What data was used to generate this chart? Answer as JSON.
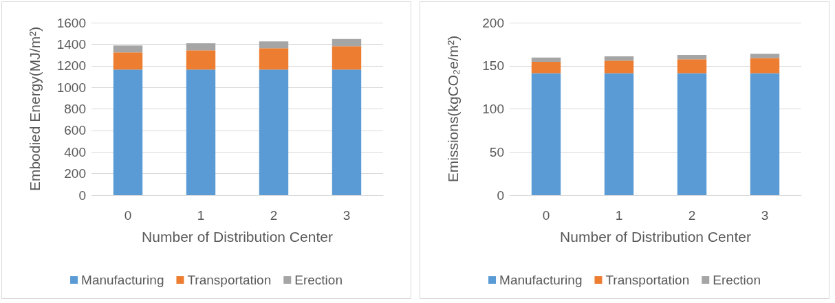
{
  "chart_data": [
    {
      "type": "bar",
      "stacked": true,
      "xlabel": "Number of Distribution Center",
      "ylabel": "Embodied Energy(MJ/m²)",
      "categories": [
        "0",
        "1",
        "2",
        "3"
      ],
      "ylim": [
        0,
        1600
      ],
      "yticks": [
        0,
        200,
        400,
        600,
        800,
        1000,
        1200,
        1400,
        1600
      ],
      "grid": "y",
      "legend": "bottom",
      "series": [
        {
          "name": "Manufacturing",
          "color": "#5b9bd5",
          "values": [
            1165,
            1165,
            1165,
            1165
          ]
        },
        {
          "name": "Transportation",
          "color": "#ed7d31",
          "values": [
            160,
            178,
            197,
            216
          ]
        },
        {
          "name": "Erection",
          "color": "#a5a5a5",
          "values": [
            63,
            65,
            65,
            67
          ]
        }
      ]
    },
    {
      "type": "bar",
      "stacked": true,
      "xlabel": "Number of Distribution Center",
      "ylabel": "Emissions(kgCO₂e/m²)",
      "categories": [
        "0",
        "1",
        "2",
        "3"
      ],
      "ylim": [
        0,
        200
      ],
      "yticks": [
        0,
        50,
        100,
        150,
        200
      ],
      "grid": "y",
      "legend": "bottom",
      "series": [
        {
          "name": "Manufacturing",
          "color": "#5b9bd5",
          "values": [
            141.5,
            141.5,
            141.5,
            141.5
          ]
        },
        {
          "name": "Transportation",
          "color": "#ed7d31",
          "values": [
            13,
            14.5,
            16,
            17.5
          ]
        },
        {
          "name": "Erection",
          "color": "#a5a5a5",
          "values": [
            5,
            5,
            5,
            5
          ]
        }
      ]
    }
  ]
}
